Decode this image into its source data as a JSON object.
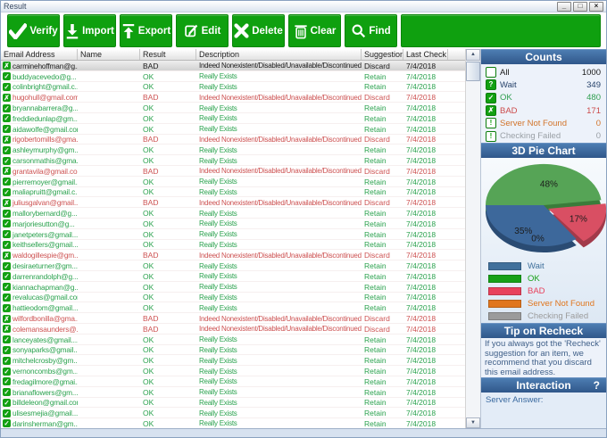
{
  "window": {
    "title": "Result",
    "controls": {
      "minimize": "_",
      "maximize": "□",
      "close": "×"
    }
  },
  "toolbar": {
    "buttons": [
      {
        "label": "Verify"
      },
      {
        "label": "Import"
      },
      {
        "label": "Export"
      },
      {
        "label": "Edit"
      },
      {
        "label": "Delete"
      },
      {
        "label": "Clear"
      },
      {
        "label": "Find"
      }
    ]
  },
  "table": {
    "columns": [
      "Email Address",
      "Name",
      "Result",
      "Description",
      "Suggestion",
      "Last Check"
    ],
    "last_check": "7/4/2018",
    "row_defaults": {
      "ok": {
        "name": "",
        "result": "OK",
        "description": "Really Exists",
        "suggestion": "Retain",
        "icon_glyph": "✓"
      },
      "bad": {
        "name": "",
        "result": "BAD",
        "description": "Indeed Nonexistent/Disabled/Unavailable/Discontinued",
        "suggestion": "Discard",
        "icon_glyph": "✗"
      }
    },
    "rows": [
      {
        "email": "carminehoffman@g...",
        "status": "bad",
        "selected": true
      },
      {
        "email": "buddyacevedo@g...",
        "status": "ok"
      },
      {
        "email": "colinbright@gmail.c...",
        "status": "ok"
      },
      {
        "email": "hugohull@gmail.com",
        "status": "bad"
      },
      {
        "email": "bryannabarrera@g...",
        "status": "ok"
      },
      {
        "email": "freddiedunlap@gm...",
        "status": "ok"
      },
      {
        "email": "aidawolfe@gmail.com",
        "status": "ok"
      },
      {
        "email": "rigobertomills@gma...",
        "status": "bad"
      },
      {
        "email": "ashleymurphy@gm...",
        "status": "ok"
      },
      {
        "email": "carsonmathis@gma...",
        "status": "ok"
      },
      {
        "email": "grantavila@gmail.com",
        "status": "bad"
      },
      {
        "email": "pierremoyer@gmail...",
        "status": "ok"
      },
      {
        "email": "maliapruitt@gmail.c...",
        "status": "ok"
      },
      {
        "email": "juliusgalvan@gmail...",
        "status": "bad"
      },
      {
        "email": "mallorybernard@g...",
        "status": "ok"
      },
      {
        "email": "marjoriesutton@g...",
        "status": "ok"
      },
      {
        "email": "janetpeters@gmail...",
        "status": "ok"
      },
      {
        "email": "keithsellers@gmail....",
        "status": "ok"
      },
      {
        "email": "waldogillespie@gm...",
        "status": "bad"
      },
      {
        "email": "desiraeturner@gm...",
        "status": "ok"
      },
      {
        "email": "darrenrandolph@g...",
        "status": "ok"
      },
      {
        "email": "kiannachapman@g...",
        "status": "ok"
      },
      {
        "email": "revalucas@gmail.com",
        "status": "ok"
      },
      {
        "email": "hattieodom@gmail....",
        "status": "ok"
      },
      {
        "email": "wilfordbonilla@gma...",
        "status": "bad"
      },
      {
        "email": "colemansaunders@...",
        "status": "bad"
      },
      {
        "email": "lanceyates@gmail....",
        "status": "ok"
      },
      {
        "email": "sonyaparks@gmail....",
        "status": "ok"
      },
      {
        "email": "mitchelcrosby@gm...",
        "status": "ok"
      },
      {
        "email": "vernoncombs@gm...",
        "status": "ok"
      },
      {
        "email": "fredagilmore@gmai...",
        "status": "ok"
      },
      {
        "email": "brianaflowers@gm...",
        "status": "ok"
      },
      {
        "email": "billdeleon@gmail.com",
        "status": "ok"
      },
      {
        "email": "ulisesmejia@gmail....",
        "status": "ok"
      },
      {
        "email": "darinsherman@gm...",
        "status": "ok"
      }
    ]
  },
  "sidebar": {
    "counts": {
      "title": "Counts",
      "items": [
        {
          "label": "All",
          "value": "1000",
          "glyph": "",
          "style": "empty",
          "icon_name": "all-icon",
          "color": "#1a1a1a"
        },
        {
          "label": "Wait",
          "value": "349",
          "glyph": "?",
          "style": "solid",
          "icon_name": "wait-icon",
          "color": "#27436b"
        },
        {
          "label": "OK",
          "value": "480",
          "glyph": "✓",
          "style": "solid",
          "icon_name": "ok-icon",
          "color": "#2e9e4f"
        },
        {
          "label": "BAD",
          "value": "171",
          "glyph": "✗",
          "style": "solid",
          "icon_name": "bad-icon",
          "color": "#cc4b4b"
        },
        {
          "label": "Server Not Found",
          "value": "0",
          "glyph": "!",
          "style": "outline",
          "icon_name": "server-not-found-icon",
          "color": "#d2742a"
        },
        {
          "label": "Checking Failed",
          "value": "0",
          "glyph": "!",
          "style": "outline",
          "icon_name": "checking-failed-icon",
          "color": "#9aa0a6"
        }
      ]
    },
    "pie": {
      "title": "3D Pie Chart"
    },
    "legend": [
      {
        "label": "Wait",
        "color": "#41719c"
      },
      {
        "label": "OK",
        "color": "#17a017"
      },
      {
        "label": "BAD",
        "color": "#e8415c"
      },
      {
        "label": "Server Not Found",
        "color": "#e0761e"
      },
      {
        "label": "Checking Failed",
        "color": "#9b9b9b"
      }
    ],
    "tip": {
      "title": "Tip on Recheck",
      "text": "If you always got the 'Recheck' suggestion for an item, we recommend that you discard this email address."
    },
    "interaction": {
      "title": "Interaction",
      "help": "?",
      "server_answer_label": "Server Answer:"
    }
  },
  "chart_data": {
    "type": "pie",
    "title": "3D Pie Chart",
    "labels": [
      "OK",
      "BAD",
      "Server Not Found",
      "Wait"
    ],
    "values_percent": [
      48,
      17,
      0,
      35
    ],
    "labels_shown": [
      "48%",
      "17%",
      "0%",
      "35%"
    ],
    "colors": [
      "#56a456",
      "#d94f63",
      "#e0761e",
      "#3d689b"
    ],
    "colors_dark": [
      "#3a7c3a",
      "#a23a4a",
      "#9c5a1e",
      "#2a4b73"
    ],
    "explode_index": 1,
    "order": "clockwise-from-west",
    "legend_position": "below",
    "source_counts": {
      "All": 1000,
      "Wait": 349,
      "OK": 480,
      "BAD": 171,
      "Server Not Found": 0,
      "Checking Failed": 0
    }
  }
}
